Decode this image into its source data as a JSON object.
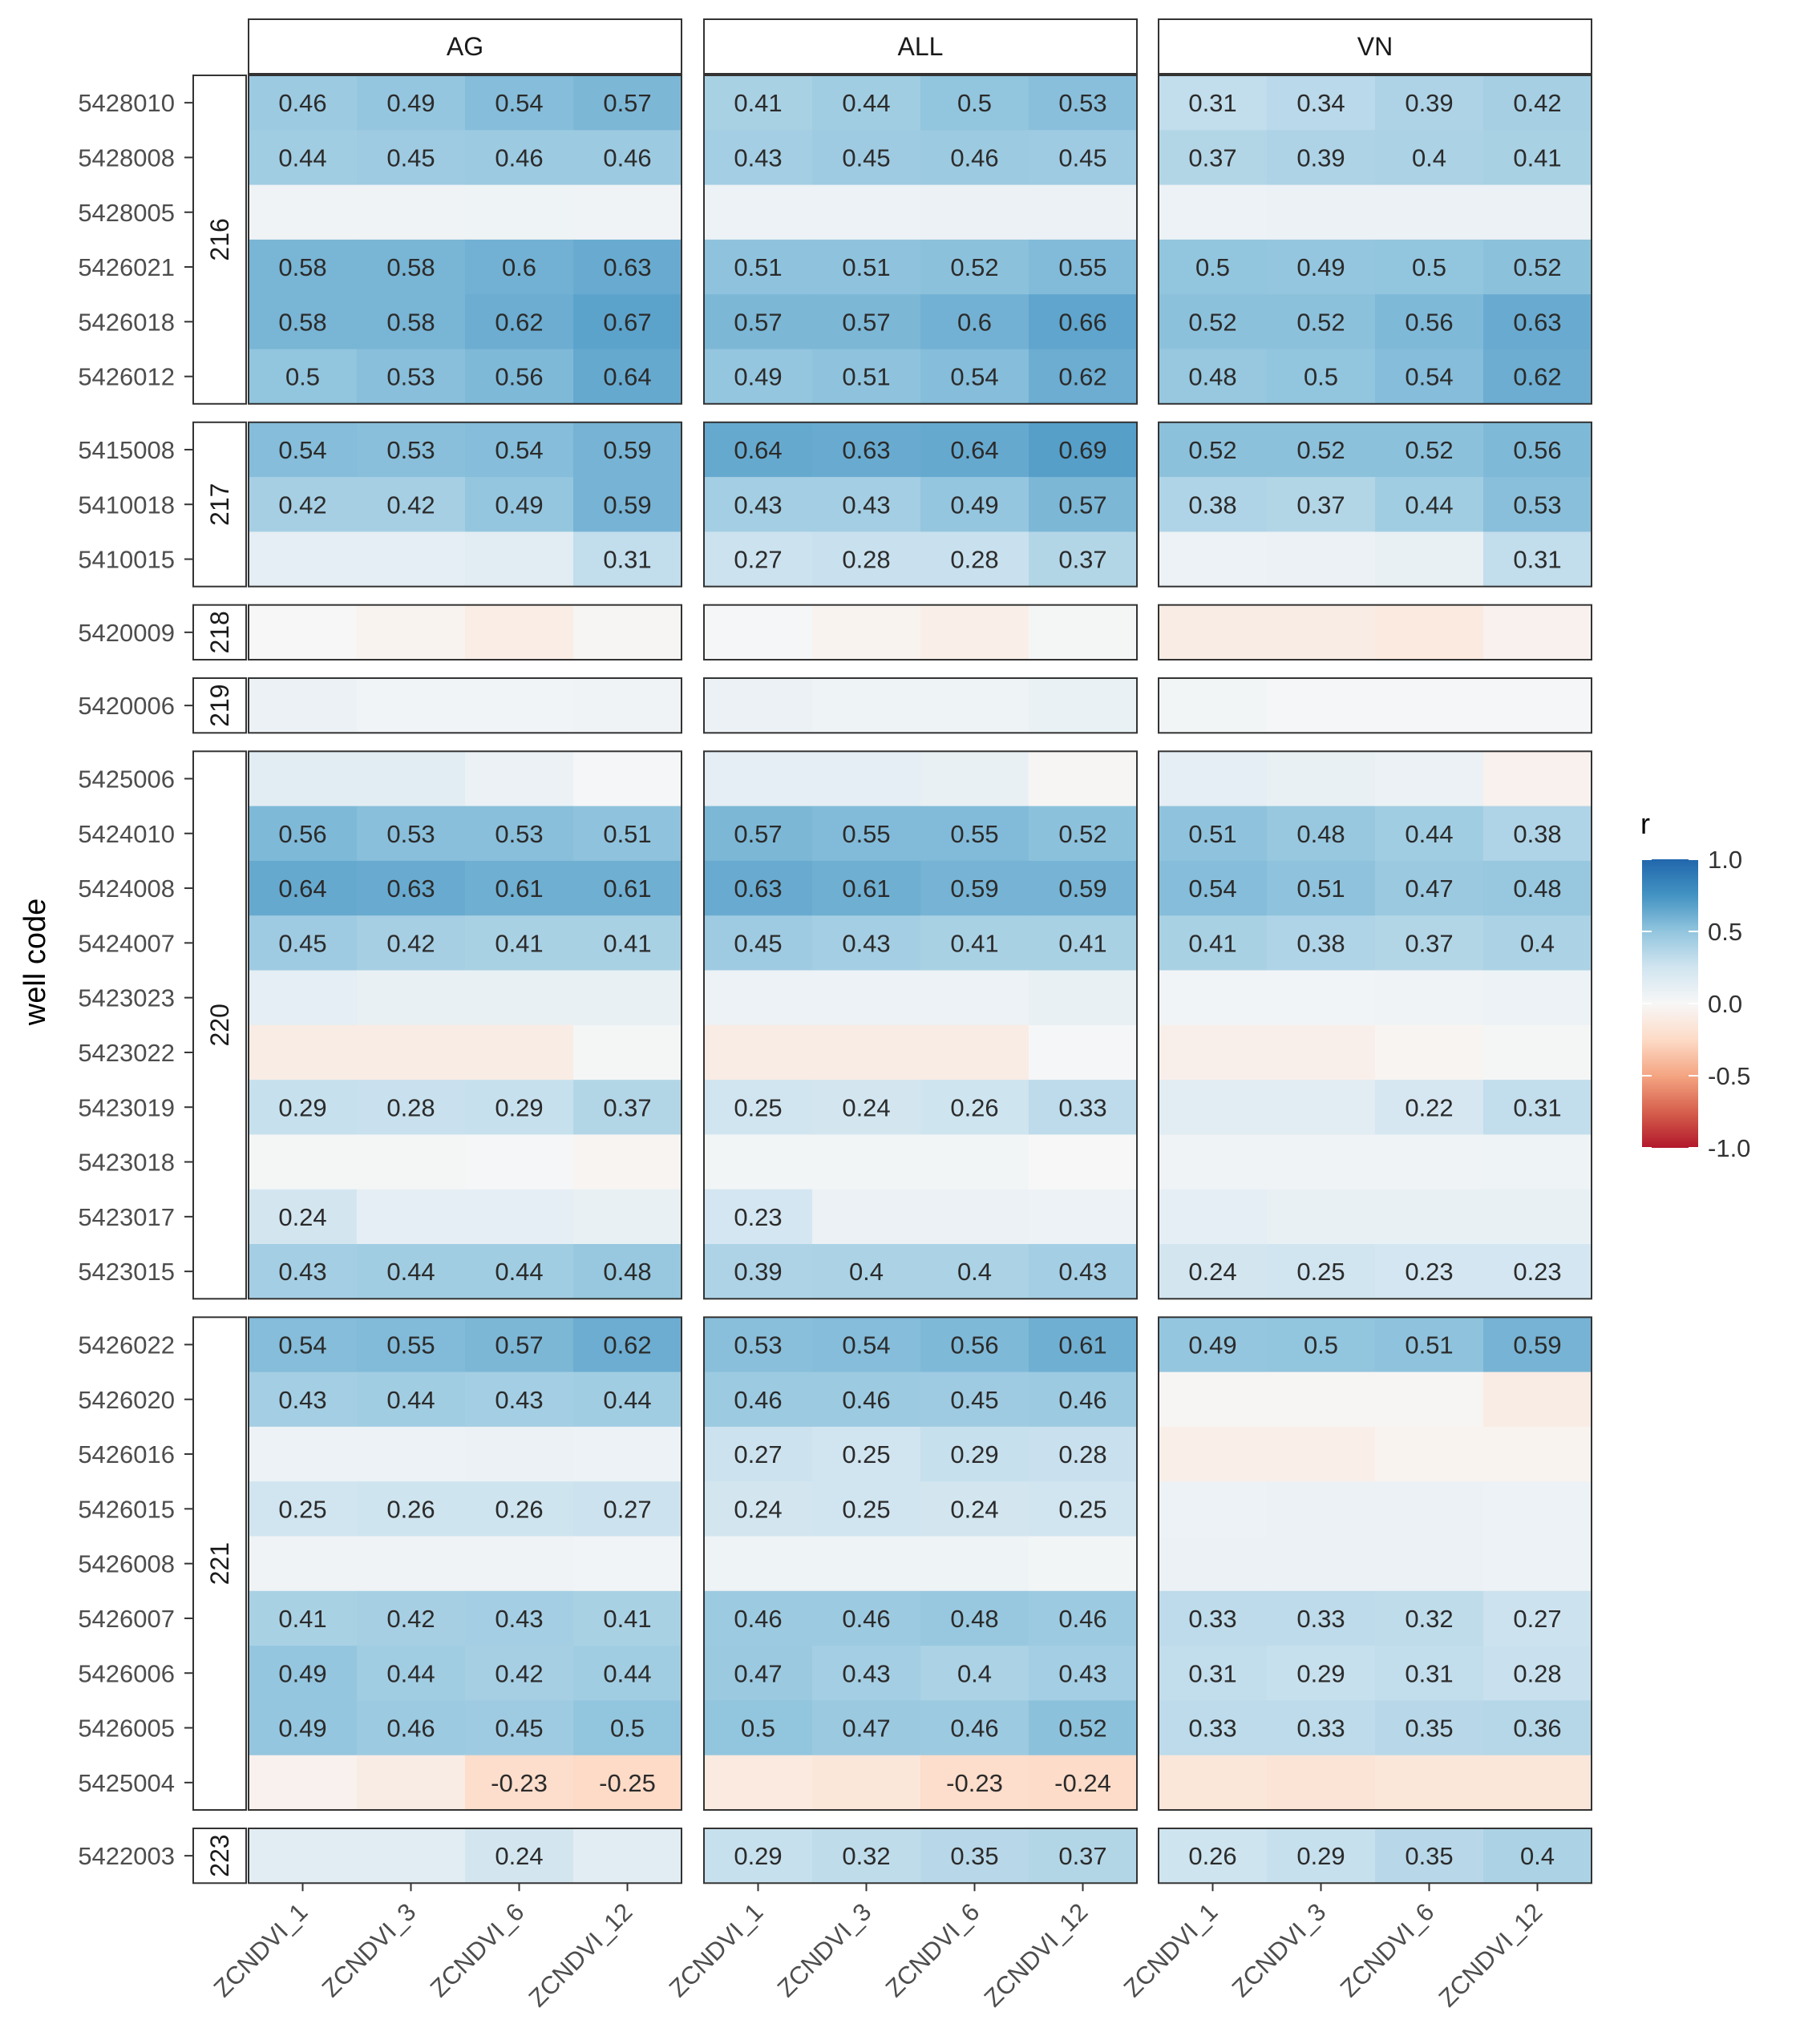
{
  "chart_data": {
    "type": "heatmap",
    "ylabel": "well code",
    "xlabel": "",
    "facets_columns": [
      "AG",
      "ALL",
      "VN"
    ],
    "x_categories": [
      "ZCNDVI_1",
      "ZCNDVI_3",
      "ZCNDVI_6",
      "ZCNDVI_12"
    ],
    "legend": {
      "title": "r",
      "range": [
        -1.0,
        1.0
      ],
      "breaks": [
        1.0,
        0.5,
        0.0,
        -0.5,
        -1.0
      ],
      "break_labels": [
        "1.0",
        "0.5",
        "0.0",
        "-0.5",
        "-1.0"
      ],
      "low_color": "#B2182B",
      "mid_color": "#F7F7F7",
      "high_color": "#2166AC",
      "position": "right"
    },
    "label_threshold": 0.2,
    "groups": [
      {
        "group": "216",
        "rows": [
          {
            "well": "5428010",
            "AG": [
              0.46,
              0.49,
              0.54,
              0.57
            ],
            "ALL": [
              0.41,
              0.44,
              0.5,
              0.53
            ],
            "VN": [
              0.31,
              0.34,
              0.39,
              0.42
            ]
          },
          {
            "well": "5428008",
            "AG": [
              0.44,
              0.45,
              0.46,
              0.46
            ],
            "ALL": [
              0.43,
              0.45,
              0.46,
              0.45
            ],
            "VN": [
              0.37,
              0.39,
              0.4,
              0.41
            ]
          },
          {
            "well": "5428005",
            "AG": [
              0.05,
              0.05,
              0.06,
              0.05
            ],
            "ALL": [
              0.07,
              0.07,
              0.08,
              0.08
            ],
            "VN": [
              0.07,
              0.08,
              0.08,
              0.08
            ]
          },
          {
            "well": "5426021",
            "AG": [
              0.58,
              0.58,
              0.6,
              0.63
            ],
            "ALL": [
              0.51,
              0.51,
              0.52,
              0.55
            ],
            "VN": [
              0.5,
              0.49,
              0.5,
              0.52
            ]
          },
          {
            "well": "5426018",
            "AG": [
              0.58,
              0.58,
              0.62,
              0.67
            ],
            "ALL": [
              0.57,
              0.57,
              0.6,
              0.66
            ],
            "VN": [
              0.52,
              0.52,
              0.56,
              0.63
            ]
          },
          {
            "well": "5426012",
            "AG": [
              0.5,
              0.53,
              0.56,
              0.64
            ],
            "ALL": [
              0.49,
              0.51,
              0.54,
              0.62
            ],
            "VN": [
              0.48,
              0.5,
              0.54,
              0.62
            ]
          }
        ]
      },
      {
        "group": "217",
        "rows": [
          {
            "well": "5415008",
            "AG": [
              0.54,
              0.53,
              0.54,
              0.59
            ],
            "ALL": [
              0.64,
              0.63,
              0.64,
              0.69
            ],
            "VN": [
              0.52,
              0.52,
              0.52,
              0.56
            ]
          },
          {
            "well": "5410018",
            "AG": [
              0.42,
              0.42,
              0.49,
              0.59
            ],
            "ALL": [
              0.43,
              0.43,
              0.49,
              0.57
            ],
            "VN": [
              0.38,
              0.37,
              0.44,
              0.53
            ]
          },
          {
            "well": "5410015",
            "AG": [
              0.12,
              0.12,
              0.14,
              0.31
            ],
            "ALL": [
              0.27,
              0.28,
              0.28,
              0.37
            ],
            "VN": [
              0.07,
              0.08,
              0.1,
              0.31
            ]
          }
        ]
      },
      {
        "group": "218",
        "rows": [
          {
            "well": "5420009",
            "AG": [
              0.0,
              -0.04,
              -0.09,
              -0.02
            ],
            "ALL": [
              0.01,
              -0.04,
              -0.08,
              0.02
            ],
            "VN": [
              -0.1,
              -0.1,
              -0.12,
              -0.05
            ]
          }
        ]
      },
      {
        "group": "219",
        "rows": [
          {
            "well": "5420006",
            "AG": [
              0.08,
              0.04,
              0.04,
              0.05
            ],
            "ALL": [
              0.08,
              0.06,
              0.06,
              0.09
            ],
            "VN": [
              0.03,
              0.01,
              0.01,
              0.01
            ]
          }
        ]
      },
      {
        "group": "220",
        "rows": [
          {
            "well": "5425006",
            "AG": [
              0.14,
              0.14,
              0.08,
              0.01
            ],
            "ALL": [
              0.12,
              0.12,
              0.1,
              -0.02
            ],
            "VN": [
              0.12,
              0.1,
              0.08,
              -0.05
            ]
          },
          {
            "well": "5424010",
            "AG": [
              0.56,
              0.53,
              0.53,
              0.51
            ],
            "ALL": [
              0.57,
              0.55,
              0.55,
              0.52
            ],
            "VN": [
              0.51,
              0.48,
              0.44,
              0.38
            ]
          },
          {
            "well": "5424008",
            "AG": [
              0.64,
              0.63,
              0.61,
              0.61
            ],
            "ALL": [
              0.63,
              0.61,
              0.59,
              0.59
            ],
            "VN": [
              0.54,
              0.51,
              0.47,
              0.48
            ]
          },
          {
            "well": "5424007",
            "AG": [
              0.45,
              0.42,
              0.41,
              0.41
            ],
            "ALL": [
              0.45,
              0.43,
              0.41,
              0.41
            ],
            "VN": [
              0.41,
              0.38,
              0.37,
              0.4
            ]
          },
          {
            "well": "5423023",
            "AG": [
              0.12,
              0.1,
              0.1,
              0.1
            ],
            "ALL": [
              0.07,
              0.07,
              0.07,
              0.1
            ],
            "VN": [
              0.04,
              0.04,
              0.05,
              0.07
            ]
          },
          {
            "well": "5423022",
            "AG": [
              -0.1,
              -0.1,
              -0.1,
              0.02
            ],
            "ALL": [
              -0.1,
              -0.1,
              -0.1,
              0.01
            ],
            "VN": [
              -0.07,
              -0.07,
              -0.03,
              0.02
            ]
          },
          {
            "well": "5423019",
            "AG": [
              0.29,
              0.28,
              0.29,
              0.37
            ],
            "ALL": [
              0.25,
              0.24,
              0.26,
              0.33
            ],
            "VN": [
              0.14,
              0.14,
              0.22,
              0.31
            ]
          },
          {
            "well": "5423018",
            "AG": [
              0.02,
              0.02,
              0.01,
              -0.03
            ],
            "ALL": [
              0.03,
              0.03,
              0.03,
              0.0
            ],
            "VN": [
              0.05,
              0.05,
              0.05,
              0.06
            ]
          },
          {
            "well": "5423017",
            "AG": [
              0.24,
              0.12,
              0.12,
              0.1
            ],
            "ALL": [
              0.23,
              0.08,
              0.08,
              0.07
            ],
            "VN": [
              0.12,
              0.1,
              0.1,
              0.1
            ]
          },
          {
            "well": "5423015",
            "AG": [
              0.43,
              0.44,
              0.44,
              0.48
            ],
            "ALL": [
              0.39,
              0.4,
              0.4,
              0.43
            ],
            "VN": [
              0.24,
              0.25,
              0.23,
              0.23
            ]
          }
        ]
      },
      {
        "group": "221",
        "rows": [
          {
            "well": "5426022",
            "AG": [
              0.54,
              0.55,
              0.57,
              0.62
            ],
            "ALL": [
              0.53,
              0.54,
              0.56,
              0.61
            ],
            "VN": [
              0.49,
              0.5,
              0.51,
              0.59
            ]
          },
          {
            "well": "5426020",
            "AG": [
              0.43,
              0.44,
              0.43,
              0.44
            ],
            "ALL": [
              0.46,
              0.46,
              0.45,
              0.46
            ],
            "VN": [
              -0.02,
              -0.02,
              -0.02,
              -0.1
            ]
          },
          {
            "well": "5426016",
            "AG": [
              0.07,
              0.07,
              0.08,
              0.07
            ],
            "ALL": [
              0.27,
              0.25,
              0.29,
              0.28
            ],
            "VN": [
              -0.08,
              -0.08,
              -0.04,
              -0.04
            ]
          },
          {
            "well": "5426015",
            "AG": [
              0.25,
              0.26,
              0.26,
              0.27
            ],
            "ALL": [
              0.24,
              0.25,
              0.24,
              0.25
            ],
            "VN": [
              0.07,
              0.08,
              0.08,
              0.07
            ]
          },
          {
            "well": "5426008",
            "AG": [
              0.05,
              0.05,
              0.05,
              0.04
            ],
            "ALL": [
              0.06,
              0.06,
              0.06,
              0.03
            ],
            "VN": [
              0.08,
              0.08,
              0.08,
              0.07
            ]
          },
          {
            "well": "5426007",
            "AG": [
              0.41,
              0.42,
              0.43,
              0.41
            ],
            "ALL": [
              0.46,
              0.46,
              0.48,
              0.46
            ],
            "VN": [
              0.33,
              0.33,
              0.32,
              0.27
            ]
          },
          {
            "well": "5426006",
            "AG": [
              0.49,
              0.44,
              0.42,
              0.44
            ],
            "ALL": [
              0.47,
              0.43,
              0.4,
              0.43
            ],
            "VN": [
              0.31,
              0.29,
              0.31,
              0.28
            ]
          },
          {
            "well": "5426005",
            "AG": [
              0.49,
              0.46,
              0.45,
              0.5
            ],
            "ALL": [
              0.5,
              0.47,
              0.46,
              0.52
            ],
            "VN": [
              0.33,
              0.33,
              0.35,
              0.36
            ]
          },
          {
            "well": "5425004",
            "AG": [
              -0.05,
              -0.1,
              -0.23,
              -0.25
            ],
            "ALL": [
              -0.12,
              -0.15,
              -0.23,
              -0.24
            ],
            "VN": [
              -0.15,
              -0.17,
              -0.15,
              -0.15
            ]
          }
        ]
      },
      {
        "group": "223",
        "rows": [
          {
            "well": "5422003",
            "AG": [
              0.14,
              0.14,
              0.24,
              0.14
            ],
            "ALL": [
              0.29,
              0.32,
              0.35,
              0.37
            ],
            "VN": [
              0.26,
              0.29,
              0.35,
              0.4
            ]
          }
        ]
      }
    ]
  }
}
